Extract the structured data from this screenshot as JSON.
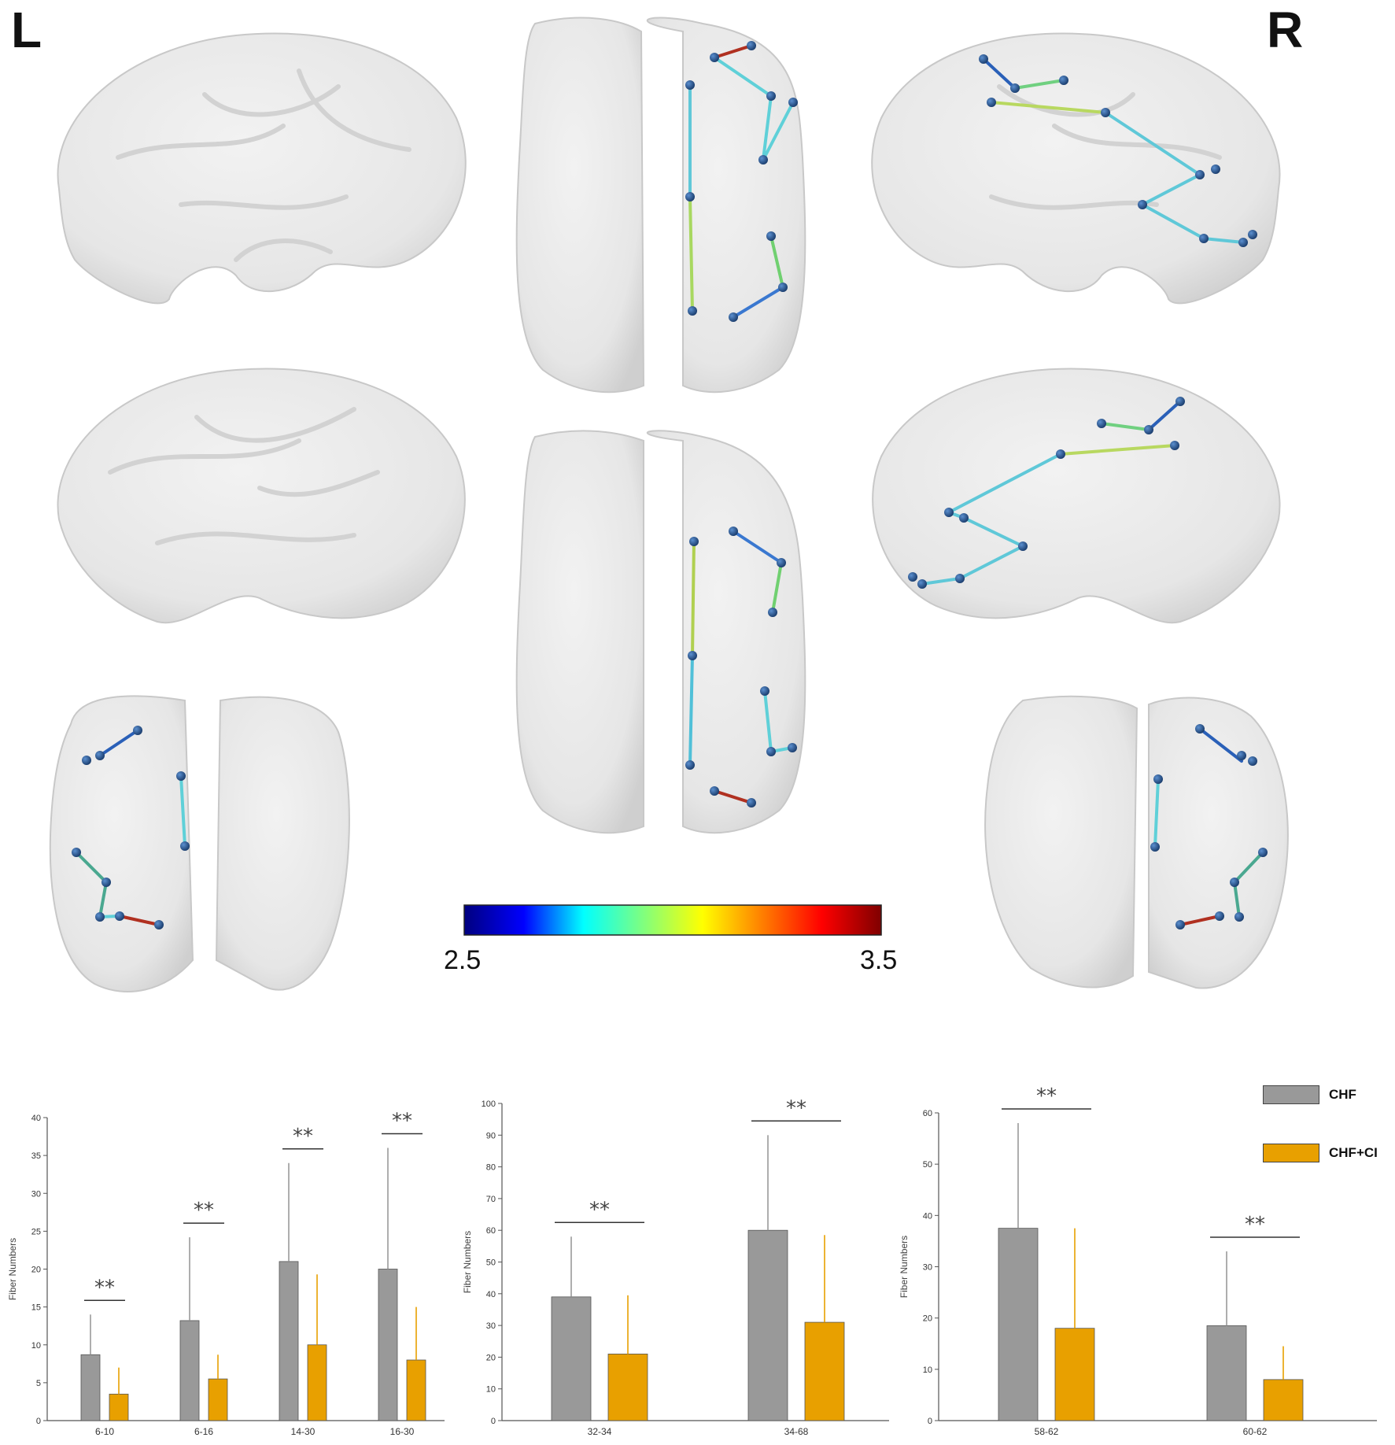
{
  "labels": {
    "left": "L",
    "right": "R"
  },
  "colorbar": {
    "min_label": "2.5",
    "max_label": "3.5",
    "min": 2.5,
    "max": 3.5,
    "colormap": "jet",
    "stops": [
      "#00007f",
      "#0000ff",
      "#00ffff",
      "#7fff7f",
      "#ffff00",
      "#ff7f00",
      "#ff0000",
      "#7f0000"
    ]
  },
  "brain": {
    "surface_color": "#e8e8e8",
    "node_color": "#1f4f8a",
    "views": [
      "left-lateral",
      "top",
      "right-lateral",
      "left-medial",
      "bottom",
      "right-medial",
      "front",
      "back"
    ]
  },
  "legend": [
    {
      "name": "CHF",
      "color": "#999999"
    },
    {
      "name": "CHF+CI",
      "color": "#e8a000"
    }
  ],
  "chart_data": [
    {
      "type": "bar",
      "categories": [
        "6-10",
        "6-16",
        "14-30",
        "16-30"
      ],
      "series": [
        {
          "name": "CHF",
          "values": [
            8.7,
            13.2,
            21,
            20
          ],
          "errors": [
            5.3,
            11,
            13,
            16
          ]
        },
        {
          "name": "CHF+CI",
          "values": [
            3.5,
            5.5,
            10,
            8
          ],
          "errors": [
            3.5,
            3.2,
            9.3,
            7
          ]
        }
      ],
      "ylabel": "Fiber Numbers",
      "ylim": [
        0,
        40
      ],
      "yticks": [
        0,
        5,
        10,
        15,
        20,
        25,
        30,
        35,
        40
      ],
      "significance": [
        "**",
        "**",
        "**",
        "**"
      ]
    },
    {
      "type": "bar",
      "categories": [
        "32-34",
        "34-68"
      ],
      "series": [
        {
          "name": "CHF",
          "values": [
            39,
            60
          ],
          "errors": [
            19,
            30
          ]
        },
        {
          "name": "CHF+CI",
          "values": [
            21,
            31
          ],
          "errors": [
            18.5,
            27.5
          ]
        }
      ],
      "ylabel": "Fiber Numbers",
      "ylim": [
        0,
        100
      ],
      "yticks": [
        0,
        10,
        20,
        30,
        40,
        50,
        60,
        70,
        80,
        90,
        100
      ],
      "significance": [
        "**",
        "**"
      ]
    },
    {
      "type": "bar",
      "categories": [
        "58-62",
        "60-62"
      ],
      "series": [
        {
          "name": "CHF",
          "values": [
            37.5,
            18.5
          ],
          "errors": [
            20.5,
            14.5
          ]
        },
        {
          "name": "CHF+CI",
          "values": [
            18,
            8
          ],
          "errors": [
            19.5,
            6.5
          ]
        }
      ],
      "ylabel": "Fiber Numbers",
      "ylim": [
        0,
        60
      ],
      "yticks": [
        0,
        10,
        20,
        30,
        40,
        50,
        60
      ],
      "significance": [
        "**",
        "**"
      ]
    }
  ]
}
